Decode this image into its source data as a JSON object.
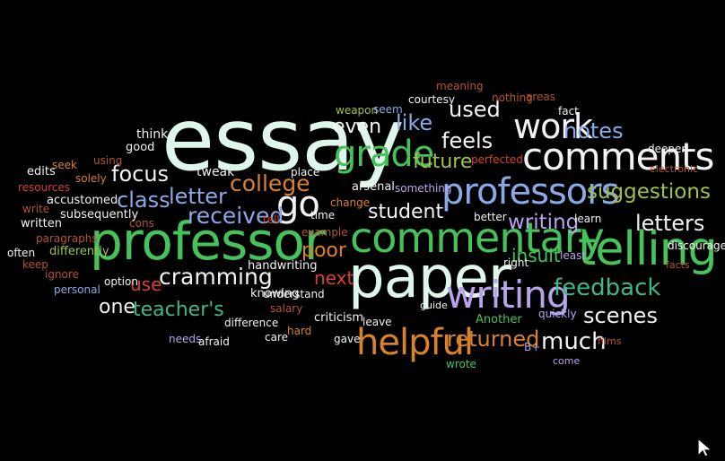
{
  "palette": {
    "background": "#000000",
    "mint": "#dff7ea",
    "white": "#f2f2f2",
    "green": "#45c35a",
    "teal": "#3fb78a",
    "lavender": "#b9a4ec",
    "blue": "#8aa9e6",
    "orange": "#d9822b",
    "red": "#d8412f",
    "rust": "#b6542e",
    "olive": "#9fc24a"
  },
  "cursor_icon": "mouse-pointer-icon",
  "words": [
    {
      "text": "essay",
      "color": "mint"
    },
    {
      "text": "professor",
      "color": "green"
    },
    {
      "text": "paper",
      "color": "mint"
    },
    {
      "text": "comments",
      "color": "white"
    },
    {
      "text": "commentary",
      "color": "green"
    },
    {
      "text": "professors",
      "color": "blue"
    },
    {
      "text": "writing",
      "color": "lavender"
    },
    {
      "text": "telling",
      "color": "green"
    },
    {
      "text": "helpful",
      "color": "orange"
    },
    {
      "text": "grade",
      "color": "green"
    },
    {
      "text": "work",
      "color": "white"
    },
    {
      "text": "go",
      "color": "white"
    },
    {
      "text": "college",
      "color": "orange"
    },
    {
      "text": "feedback",
      "color": "teal"
    },
    {
      "text": "suggestions",
      "color": "olive"
    },
    {
      "text": "received",
      "color": "blue"
    },
    {
      "text": "returned",
      "color": "orange"
    },
    {
      "text": "much",
      "color": "white"
    },
    {
      "text": "scenes",
      "color": "white"
    },
    {
      "text": "letters",
      "color": "white"
    },
    {
      "text": "writing",
      "color": "lavender"
    },
    {
      "text": "cramming",
      "color": "white"
    },
    {
      "text": "teacher's",
      "color": "teal"
    },
    {
      "text": "student",
      "color": "white"
    },
    {
      "text": "future",
      "color": "olive"
    },
    {
      "text": "feels",
      "color": "white"
    },
    {
      "text": "notes",
      "color": "blue"
    },
    {
      "text": "insult",
      "color": "green"
    },
    {
      "text": "poor",
      "color": "orange"
    },
    {
      "text": "next",
      "color": "red"
    },
    {
      "text": "letter",
      "color": "blue"
    },
    {
      "text": "class",
      "color": "blue"
    },
    {
      "text": "focus",
      "color": "white"
    },
    {
      "text": "even",
      "color": "white"
    },
    {
      "text": "like",
      "color": "blue"
    },
    {
      "text": "used",
      "color": "white"
    },
    {
      "text": "one",
      "color": "white"
    },
    {
      "text": "use",
      "color": "red"
    },
    {
      "text": "tweak",
      "color": "white"
    },
    {
      "text": "think",
      "color": "white"
    },
    {
      "text": "good",
      "color": "white"
    },
    {
      "text": "using",
      "color": "rust"
    },
    {
      "text": "seek",
      "color": "orange"
    },
    {
      "text": "solely",
      "color": "orange"
    },
    {
      "text": "edits",
      "color": "white"
    },
    {
      "text": "resources",
      "color": "red"
    },
    {
      "text": "accustomed",
      "color": "white"
    },
    {
      "text": "write",
      "color": "rust"
    },
    {
      "text": "subsequently",
      "color": "white"
    },
    {
      "text": "written",
      "color": "white"
    },
    {
      "text": "cons",
      "color": "rust"
    },
    {
      "text": "paragraphs",
      "color": "rust"
    },
    {
      "text": "often",
      "color": "white"
    },
    {
      "text": "differently",
      "color": "olive"
    },
    {
      "text": "keep",
      "color": "rust"
    },
    {
      "text": "ignore",
      "color": "rust"
    },
    {
      "text": "personal",
      "color": "blue"
    },
    {
      "text": "option",
      "color": "white"
    },
    {
      "text": "handwriting",
      "color": "white"
    },
    {
      "text": "knowing",
      "color": "white"
    },
    {
      "text": "understand",
      "color": "white"
    },
    {
      "text": "salary",
      "color": "rust"
    },
    {
      "text": "difference",
      "color": "white"
    },
    {
      "text": "hard",
      "color": "orange"
    },
    {
      "text": "needs",
      "color": "lavender"
    },
    {
      "text": "afraid",
      "color": "white"
    },
    {
      "text": "care",
      "color": "white"
    },
    {
      "text": "gave",
      "color": "white"
    },
    {
      "text": "criticism",
      "color": "white"
    },
    {
      "text": "leave",
      "color": "white"
    },
    {
      "text": "guide",
      "color": "white"
    },
    {
      "text": "Another",
      "color": "green"
    },
    {
      "text": "wrote",
      "color": "green"
    },
    {
      "text": "B+",
      "color": "lavender"
    },
    {
      "text": "come",
      "color": "lavender"
    },
    {
      "text": "films",
      "color": "rust"
    },
    {
      "text": "quickly",
      "color": "lavender"
    },
    {
      "text": "right",
      "color": "white"
    },
    {
      "text": "least",
      "color": "lavender"
    },
    {
      "text": "facts",
      "color": "rust"
    },
    {
      "text": "discouraged",
      "color": "white"
    },
    {
      "text": "learn",
      "color": "white"
    },
    {
      "text": "better",
      "color": "white"
    },
    {
      "text": "deeper",
      "color": "white"
    },
    {
      "text": "electronic",
      "color": "rust"
    },
    {
      "text": "fact",
      "color": "white"
    },
    {
      "text": "areas",
      "color": "rust"
    },
    {
      "text": "nothing",
      "color": "rust"
    },
    {
      "text": "meaning",
      "color": "rust"
    },
    {
      "text": "courtesy",
      "color": "white"
    },
    {
      "text": "weapon",
      "color": "olive"
    },
    {
      "text": "seem",
      "color": "blue"
    },
    {
      "text": "perfected",
      "color": "red"
    },
    {
      "text": "something",
      "color": "lavender"
    },
    {
      "text": "arsenal",
      "color": "white"
    },
    {
      "text": "place",
      "color": "white"
    },
    {
      "text": "change",
      "color": "orange"
    },
    {
      "text": "time",
      "color": "white"
    },
    {
      "text": "tell",
      "color": "red"
    },
    {
      "text": "example",
      "color": "rust"
    }
  ]
}
